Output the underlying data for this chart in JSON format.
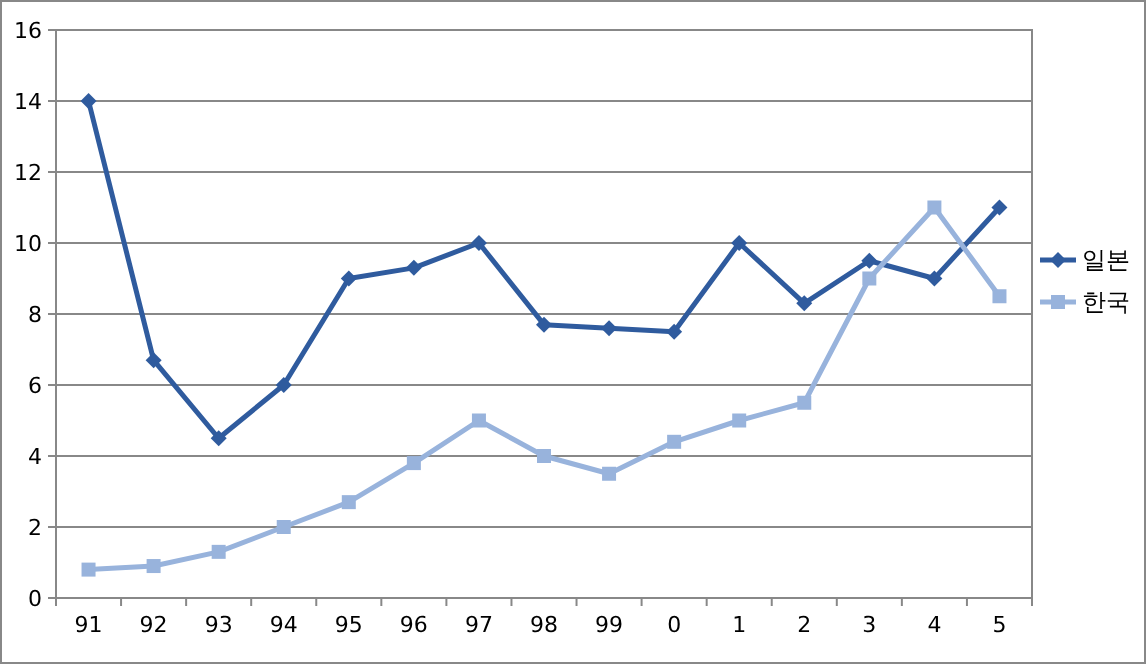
{
  "chart_data": {
    "type": "line",
    "categories": [
      "91",
      "92",
      "93",
      "94",
      "95",
      "96",
      "97",
      "98",
      "99",
      "0",
      "1",
      "2",
      "3",
      "4",
      "5"
    ],
    "series": [
      {
        "name": "일본",
        "color": "#2f5b9e",
        "marker": "diamond",
        "values": [
          14,
          6.7,
          4.5,
          6,
          9,
          9.3,
          10,
          7.7,
          7.6,
          7.5,
          10,
          8.3,
          9.5,
          9,
          11
        ]
      },
      {
        "name": "한국",
        "color": "#98b3dc",
        "marker": "square",
        "values": [
          0.8,
          0.9,
          1.3,
          2,
          2.7,
          3.8,
          5,
          4,
          3.5,
          4.4,
          5,
          5.5,
          9,
          11,
          8.5
        ]
      }
    ],
    "ylim": [
      0,
      16
    ],
    "yticks": [
      0,
      2,
      4,
      6,
      8,
      10,
      12,
      14,
      16
    ],
    "grid": "y",
    "legend": "right",
    "line_style": "solid"
  }
}
